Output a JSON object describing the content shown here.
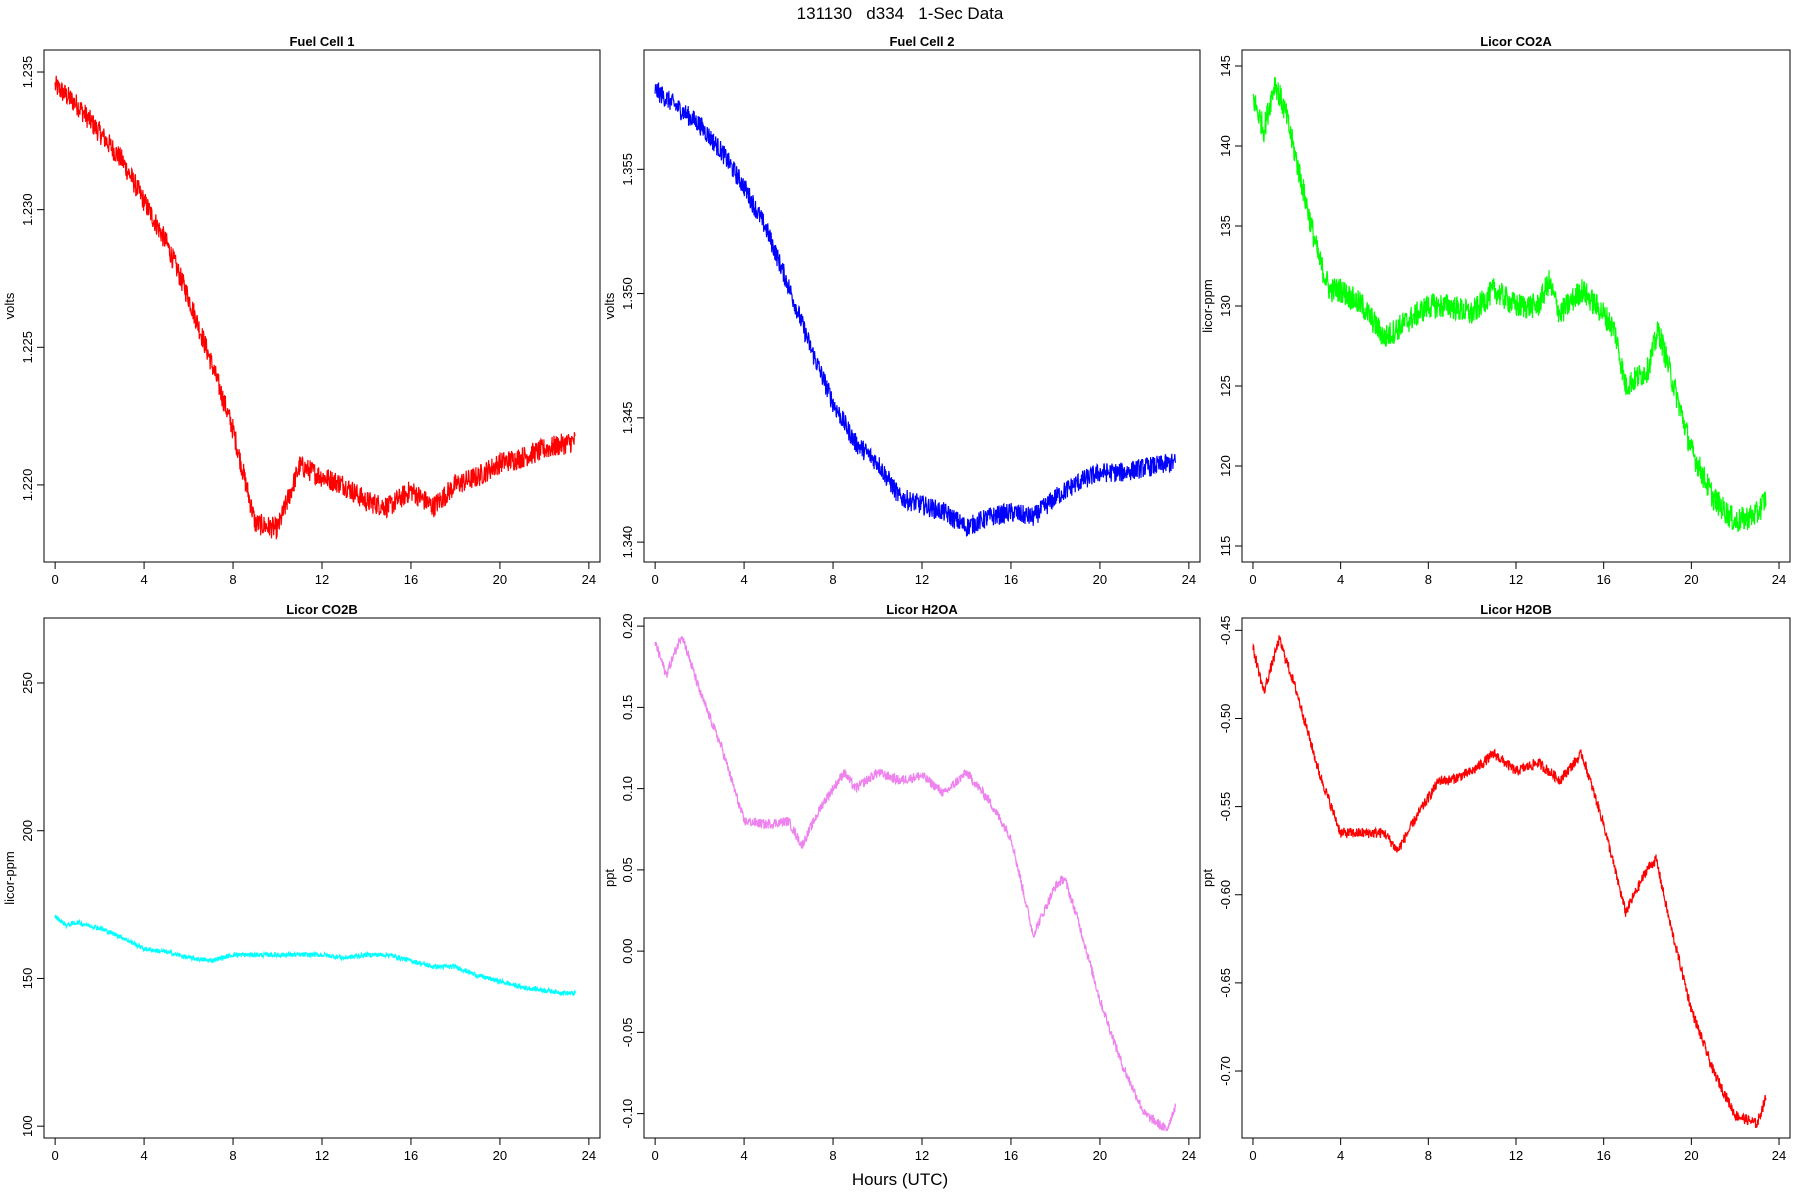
{
  "header": {
    "title": "131130   d334   1-Sec Data",
    "xlabel": "Hours (UTC)"
  },
  "chart_data": [
    {
      "type": "line",
      "title": "Fuel Cell 1",
      "xlabel": "",
      "ylabel": "volts",
      "color": "#ff0000",
      "xlim": [
        -0.5,
        24.5
      ],
      "ylim": [
        1.2172,
        1.2358
      ],
      "xticks": [
        0,
        4,
        8,
        12,
        16,
        20,
        24
      ],
      "yticks": [
        1.22,
        1.225,
        1.23,
        1.235
      ],
      "yticks_labels": [
        "1.220",
        "1.225",
        "1.230",
        "1.235"
      ],
      "noise": 0.0004,
      "series": [
        {
          "x": [
            0,
            1,
            2,
            3,
            4,
            5,
            6,
            7,
            8,
            9,
            10,
            11,
            12,
            13,
            14,
            15,
            16,
            17,
            18,
            19,
            20,
            21,
            22,
            23.4
          ],
          "values": [
            1.2345,
            1.2338,
            1.2328,
            1.2318,
            1.2303,
            1.2288,
            1.2268,
            1.2245,
            1.222,
            1.2186,
            1.2184,
            1.2207,
            1.2203,
            1.22,
            1.2194,
            1.2192,
            1.2198,
            1.2192,
            1.22,
            1.2203,
            1.2208,
            1.221,
            1.2213,
            1.2216
          ]
        }
      ]
    },
    {
      "type": "line",
      "title": "Fuel Cell 2",
      "xlabel": "",
      "ylabel": "volts",
      "color": "#0000ff",
      "xlim": [
        -0.5,
        24.5
      ],
      "ylim": [
        1.3392,
        1.3598
      ],
      "xticks": [
        0,
        4,
        8,
        12,
        16,
        20,
        24
      ],
      "yticks": [
        1.34,
        1.345,
        1.35,
        1.355
      ],
      "yticks_labels": [
        "1.340",
        "1.345",
        "1.350",
        "1.355"
      ],
      "noise": 0.0004,
      "series": [
        {
          "x": [
            0,
            1,
            2,
            3,
            4,
            5,
            6,
            7,
            8,
            9,
            10,
            11,
            12,
            13,
            14,
            15,
            16,
            17,
            18,
            19,
            20,
            21,
            22,
            23.4
          ],
          "values": [
            1.3582,
            1.3575,
            1.3568,
            1.3557,
            1.3543,
            1.3526,
            1.3503,
            1.3478,
            1.3456,
            1.344,
            1.3432,
            1.3418,
            1.3415,
            1.3412,
            1.3406,
            1.341,
            1.3412,
            1.341,
            1.3418,
            1.3424,
            1.3428,
            1.3428,
            1.343,
            1.3432
          ]
        }
      ]
    },
    {
      "type": "line",
      "title": "Licor CO2A",
      "xlabel": "",
      "ylabel": "licor-ppm",
      "color": "#00ff00",
      "xlim": [
        -0.5,
        24.5
      ],
      "ylim": [
        114,
        146
      ],
      "xticks": [
        0,
        4,
        8,
        12,
        16,
        20,
        24
      ],
      "yticks": [
        115,
        120,
        125,
        130,
        135,
        140,
        145
      ],
      "yticks_labels": [
        "115",
        "120",
        "125",
        "130",
        "135",
        "140",
        "145"
      ],
      "noise": 0.8,
      "series": [
        {
          "x": [
            0,
            0.5,
            1,
            1.5,
            2,
            2.5,
            3,
            3.5,
            4,
            5,
            6,
            6.5,
            7,
            8,
            9,
            10,
            11,
            12,
            13,
            13.5,
            14,
            15,
            16,
            16.5,
            17,
            18,
            18.5,
            19,
            20,
            21,
            22,
            23,
            23.4
          ],
          "values": [
            143,
            141,
            144,
            142,
            139,
            136,
            133,
            131,
            131,
            130,
            128,
            128.5,
            129,
            130,
            130,
            129.5,
            131,
            130,
            130,
            131.5,
            129.5,
            131,
            129.5,
            128.5,
            125,
            126,
            128.5,
            126,
            121,
            118,
            116.5,
            117,
            118
          ]
        }
      ]
    },
    {
      "type": "line",
      "title": "Licor CO2B",
      "xlabel": "",
      "ylabel": "licor-ppm",
      "color": "#00ffff",
      "xlim": [
        -0.5,
        24.5
      ],
      "ylim": [
        96,
        272
      ],
      "xticks": [
        0,
        4,
        8,
        12,
        16,
        20,
        24
      ],
      "yticks": [
        100,
        150,
        200,
        250
      ],
      "yticks_labels": [
        "100",
        "150",
        "200",
        "250"
      ],
      "noise": 0.8,
      "series": [
        {
          "x": [
            0,
            0.5,
            1,
            2,
            3,
            4,
            5,
            6,
            7,
            8,
            9,
            10,
            11,
            12,
            13,
            14,
            15,
            16,
            17,
            18,
            19,
            20,
            21,
            22,
            23,
            23.4
          ],
          "values": [
            171,
            168,
            169,
            167,
            164,
            160,
            159,
            157,
            156,
            158,
            158,
            158,
            158,
            158,
            157,
            158,
            158,
            156,
            154,
            154,
            151,
            149,
            147,
            146,
            145,
            145
          ]
        }
      ]
    },
    {
      "type": "line",
      "title": "Licor H2OA",
      "xlabel": "",
      "ylabel": "ppt",
      "color": "#ee82ee",
      "xlim": [
        -0.5,
        24.5
      ],
      "ylim": [
        -0.115,
        0.205
      ],
      "xticks": [
        0,
        4,
        8,
        12,
        16,
        20,
        24
      ],
      "yticks": [
        -0.1,
        -0.05,
        0.0,
        0.05,
        0.1,
        0.15,
        0.2
      ],
      "yticks_labels": [
        "-0.10",
        "-0.05",
        "0.00",
        "0.05",
        "0.10",
        "0.15",
        "0.20"
      ],
      "noise": 0.003,
      "series": [
        {
          "x": [
            0,
            0.5,
            1.2,
            2,
            3,
            4,
            5,
            6,
            6.6,
            7.5,
            8.5,
            9,
            10,
            11,
            12,
            13,
            14,
            15,
            16,
            17,
            18,
            18.4,
            19,
            20,
            21,
            22,
            23,
            23.4
          ],
          "values": [
            0.19,
            0.17,
            0.195,
            0.16,
            0.125,
            0.08,
            0.078,
            0.08,
            0.065,
            0.09,
            0.11,
            0.1,
            0.11,
            0.105,
            0.108,
            0.097,
            0.11,
            0.093,
            0.07,
            0.01,
            0.04,
            0.045,
            0.02,
            -0.03,
            -0.07,
            -0.1,
            -0.11,
            -0.095
          ]
        }
      ]
    },
    {
      "type": "line",
      "title": "Licor H2OB",
      "xlabel": "",
      "ylabel": "ppt",
      "color": "#ff0000",
      "xlim": [
        -0.5,
        24.5
      ],
      "ylim": [
        -0.738,
        -0.443
      ],
      "xticks": [
        0,
        4,
        8,
        12,
        16,
        20,
        24
      ],
      "yticks": [
        -0.7,
        -0.65,
        -0.6,
        -0.55,
        -0.5,
        -0.45
      ],
      "yticks_labels": [
        "-0.70",
        "-0.65",
        "-0.60",
        "-0.55",
        "-0.50",
        "-0.45"
      ],
      "noise": 0.003,
      "series": [
        {
          "x": [
            0,
            0.5,
            1.2,
            2,
            3,
            4,
            5,
            6,
            6.6,
            7.5,
            8.5,
            9,
            10,
            11,
            12,
            13,
            14,
            15,
            16,
            17,
            18,
            18.4,
            19,
            20,
            21,
            22,
            23,
            23.4
          ],
          "values": [
            -0.46,
            -0.485,
            -0.455,
            -0.485,
            -0.53,
            -0.565,
            -0.565,
            -0.565,
            -0.575,
            -0.555,
            -0.535,
            -0.535,
            -0.53,
            -0.52,
            -0.53,
            -0.525,
            -0.535,
            -0.52,
            -0.56,
            -0.61,
            -0.585,
            -0.58,
            -0.615,
            -0.665,
            -0.7,
            -0.725,
            -0.73,
            -0.715
          ]
        }
      ]
    }
  ]
}
